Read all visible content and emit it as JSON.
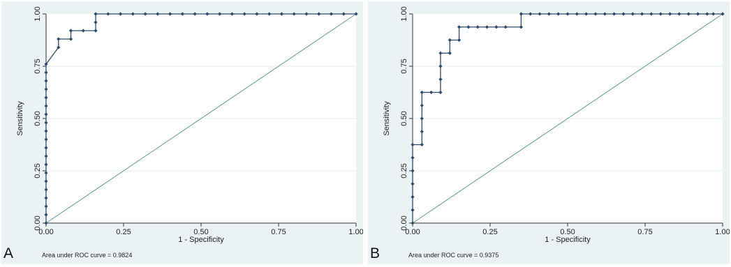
{
  "chart_data": [
    {
      "type": "line",
      "panel_label": "A",
      "xlabel": "1 - Specificity",
      "ylabel": "Sensitivity",
      "xlim": [
        0,
        1
      ],
      "ylim": [
        0,
        1
      ],
      "x_ticks": [
        "0.00",
        "0.25",
        "0.50",
        "0.75",
        "1.00"
      ],
      "y_ticks": [
        "0.00",
        "0.25",
        "0.50",
        "0.75",
        "1.00"
      ],
      "grid": "horizontal",
      "legend": "none",
      "annotation": "Area under ROC curve = 0.9824",
      "colors": {
        "roc": "#2d4a6b",
        "reference": "#5e9a8c",
        "panel_bg": "#eaf2f3",
        "plot_bg": "#ffffff"
      },
      "series": [
        {
          "x": [
            0,
            0,
            0,
            0,
            0,
            0,
            0,
            0,
            0,
            0,
            0,
            0,
            0,
            0,
            0,
            0,
            0,
            0,
            0,
            0,
            0.04,
            0.04,
            0.08,
            0.08,
            0.12,
            0.16,
            0.16,
            0.16,
            0.2,
            0.24,
            0.28,
            0.32,
            0.36,
            0.4,
            0.44,
            0.48,
            0.52,
            0.56,
            0.6,
            0.64,
            0.68,
            0.72,
            0.76,
            0.8,
            0.84,
            0.88,
            0.92,
            0.96,
            1.0
          ],
          "y": [
            0,
            0.04,
            0.08,
            0.12,
            0.16,
            0.2,
            0.24,
            0.28,
            0.32,
            0.36,
            0.4,
            0.44,
            0.48,
            0.52,
            0.56,
            0.6,
            0.64,
            0.68,
            0.72,
            0.76,
            0.84,
            0.88,
            0.88,
            0.92,
            0.92,
            0.92,
            0.96,
            1.0,
            1.0,
            1.0,
            1.0,
            1.0,
            1.0,
            1.0,
            1.0,
            1.0,
            1.0,
            1.0,
            1.0,
            1.0,
            1.0,
            1.0,
            1.0,
            1.0,
            1.0,
            1.0,
            1.0,
            1.0,
            1.0
          ]
        }
      ]
    },
    {
      "type": "line",
      "panel_label": "B",
      "xlabel": "1 - Specificity",
      "ylabel": "Sensitivity",
      "xlim": [
        0,
        1
      ],
      "ylim": [
        0,
        1
      ],
      "x_ticks": [
        "0.00",
        "0.25",
        "0.50",
        "0.75",
        "1.00"
      ],
      "y_ticks": [
        "0.00",
        "0.25",
        "0.50",
        "0.75",
        "1.00"
      ],
      "grid": "horizontal",
      "legend": "none",
      "annotation": "Area under ROC curve = 0.9375",
      "colors": {
        "roc": "#2d4a6b",
        "reference": "#5e9a8c",
        "panel_bg": "#eaf2f3",
        "plot_bg": "#ffffff"
      },
      "series": [
        {
          "x": [
            0,
            0,
            0,
            0,
            0,
            0,
            0,
            0.03,
            0.03,
            0.03,
            0.03,
            0.03,
            0.06,
            0.09,
            0.09,
            0.09,
            0.09,
            0.12,
            0.12,
            0.15,
            0.15,
            0.18,
            0.21,
            0.24,
            0.27,
            0.3,
            0.35,
            0.35,
            0.38,
            0.41,
            0.44,
            0.47,
            0.5,
            0.53,
            0.56,
            0.59,
            0.62,
            0.65,
            0.68,
            0.71,
            0.74,
            0.77,
            0.8,
            0.83,
            0.86,
            0.89,
            0.92,
            0.95,
            0.97,
            1.0
          ],
          "y": [
            0,
            0.0625,
            0.125,
            0.1875,
            0.25,
            0.3125,
            0.375,
            0.375,
            0.4375,
            0.5,
            0.5625,
            0.625,
            0.625,
            0.625,
            0.6875,
            0.75,
            0.8125,
            0.8125,
            0.875,
            0.875,
            0.9375,
            0.9375,
            0.9375,
            0.9375,
            0.9375,
            0.9375,
            0.9375,
            1.0,
            1.0,
            1.0,
            1.0,
            1.0,
            1.0,
            1.0,
            1.0,
            1.0,
            1.0,
            1.0,
            1.0,
            1.0,
            1.0,
            1.0,
            1.0,
            1.0,
            1.0,
            1.0,
            1.0,
            1.0,
            1.0,
            1.0
          ]
        }
      ]
    }
  ]
}
